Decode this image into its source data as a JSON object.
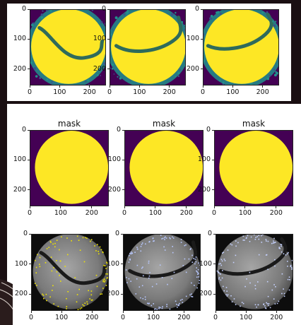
{
  "figure": {
    "background_color": "#1a0f12",
    "card_color": "#ffffff"
  },
  "chart_data": [
    {
      "type": "heatmap",
      "row": "intensity",
      "panels": [
        {
          "title": "",
          "colormap": "viridis",
          "groove": "left-curve"
        },
        {
          "title": "",
          "colormap": "viridis",
          "groove": "mid-curve"
        },
        {
          "title": "",
          "colormap": "viridis",
          "groove": "right-curve"
        }
      ],
      "xlim": [
        0,
        255
      ],
      "ylim": [
        255,
        0
      ],
      "xticks": [
        "0",
        "100",
        "200"
      ],
      "yticks": [
        "0",
        "100",
        "200"
      ],
      "colors": {
        "high": "#fde725",
        "mid": "#21918c",
        "low": "#440154"
      }
    },
    {
      "type": "heatmap",
      "row": "mask",
      "panels": [
        {
          "title": "mask",
          "colormap": "viridis"
        },
        {
          "title": "mask",
          "colormap": "viridis"
        },
        {
          "title": "mask",
          "colormap": "viridis"
        }
      ],
      "xlim": [
        0,
        255
      ],
      "ylim": [
        255,
        0
      ],
      "xticks": [
        "0",
        "100",
        "200"
      ],
      "yticks": [
        "0",
        "100",
        "200"
      ],
      "colors": {
        "inside": "#fde725",
        "outside": "#440154"
      }
    },
    {
      "type": "scatter",
      "row": "keypoints",
      "panels": [
        {
          "title": "",
          "background": "grayscale image",
          "marker_color": "#f2e600",
          "groove": "left-curve"
        },
        {
          "title": "",
          "background": "grayscale image",
          "marker_color": "#b8c8ff",
          "groove": "mid-curve"
        },
        {
          "title": "",
          "background": "grayscale image",
          "marker_color": "#c6d2ff",
          "groove": "right-curve"
        }
      ],
      "xlim": [
        0,
        255
      ],
      "ylim": [
        255,
        0
      ],
      "xticks": [
        "0",
        "100",
        "200"
      ],
      "yticks": [
        "0",
        "100",
        "200"
      ]
    }
  ]
}
